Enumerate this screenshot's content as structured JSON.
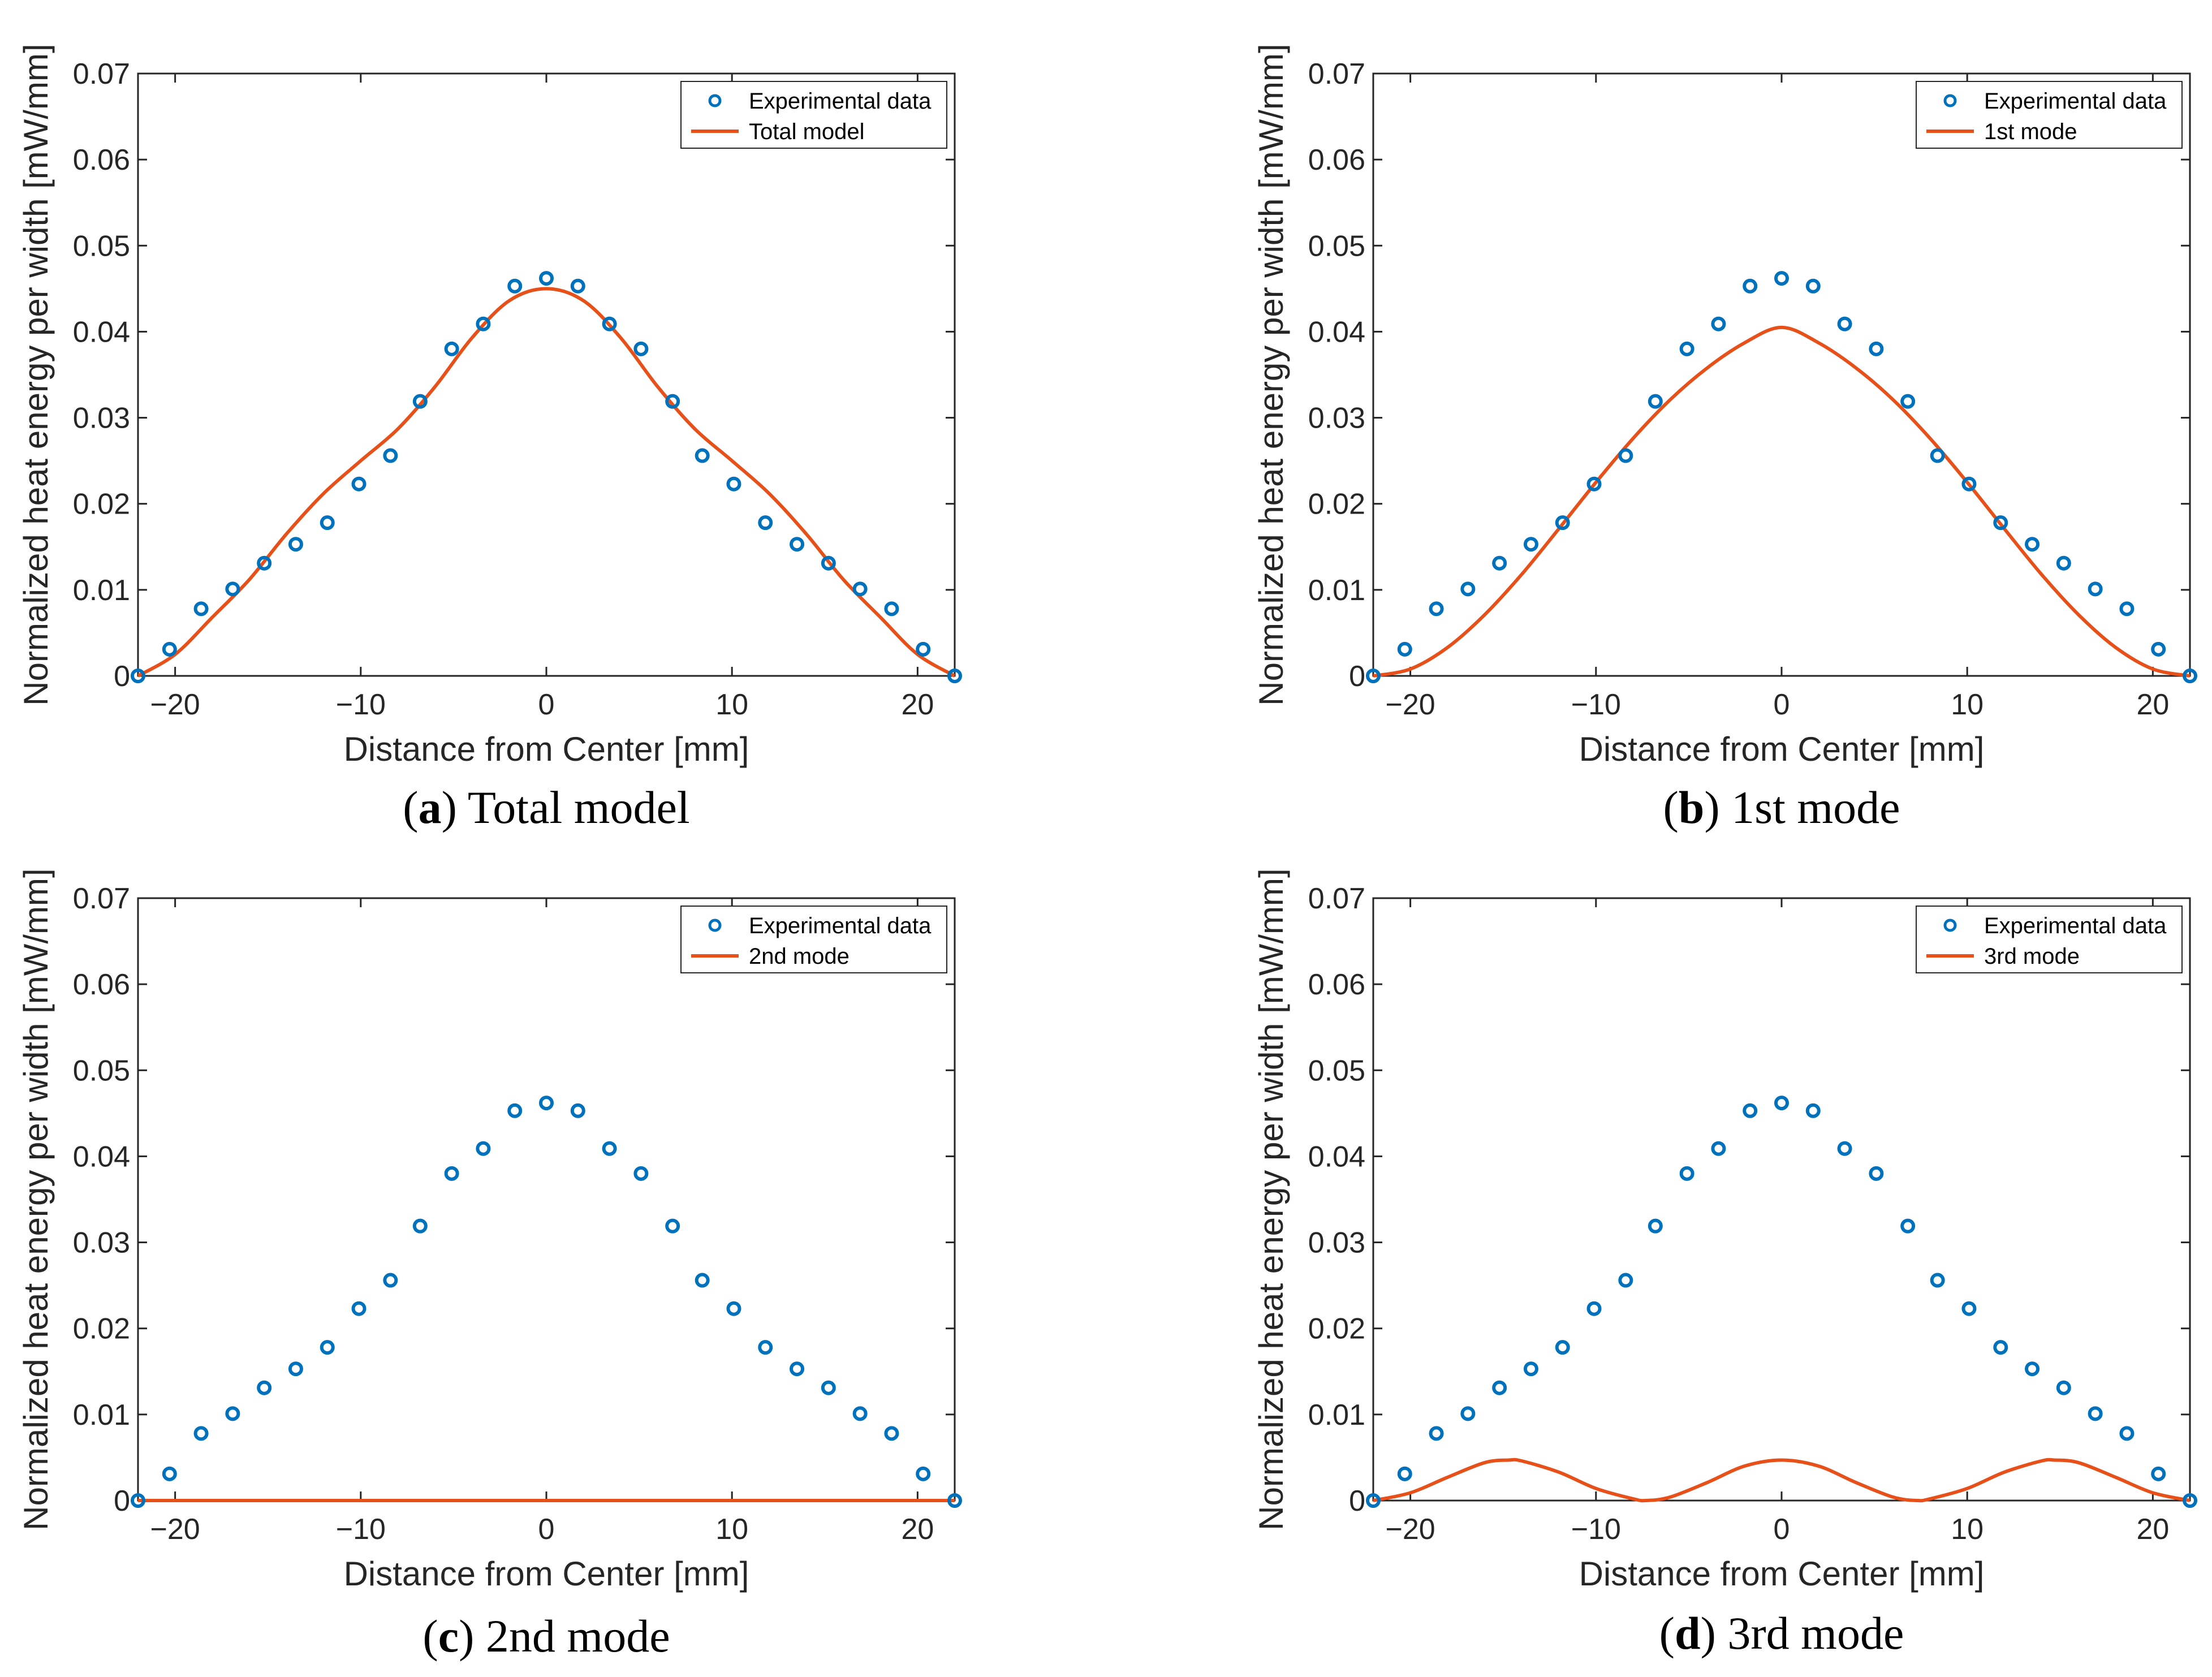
{
  "colors": {
    "experimental": "#0072BD",
    "model": "#E8501A",
    "axis": "#262626"
  },
  "chart_data": [
    {
      "type": "line",
      "panel_letter": "a",
      "caption_text": " Total model",
      "xlabel": "Distance from Center [mm]",
      "ylabel": "Normalized heat energy per width [mW/mm]",
      "xlim": [
        -22,
        22
      ],
      "ylim": [
        0,
        0.07
      ],
      "xticks": [
        -20,
        -10,
        0,
        10,
        20
      ],
      "yticks": [
        0,
        0.01,
        0.02,
        0.03,
        0.04,
        0.05,
        0.06,
        0.07
      ],
      "tick_labels_x": [
        "−20",
        "−10",
        "0",
        "10",
        "20"
      ],
      "tick_labels_y": [
        "0",
        "0.01",
        "0.02",
        "0.03",
        "0.04",
        "0.05",
        "0.06",
        "0.07"
      ],
      "grid": false,
      "legend_position": "top-right",
      "series": [
        {
          "name": "Experimental data",
          "kind": "scatter",
          "x": [
            -22,
            -20.3,
            -18.6,
            -16.9,
            -15.2,
            -13.5,
            -11.8,
            -10.1,
            -8.4,
            -6.8,
            -5.1,
            -3.4,
            -1.7,
            0,
            1.7,
            3.4,
            5.1,
            6.8,
            8.4,
            10.1,
            11.8,
            13.5,
            15.2,
            16.9,
            18.6,
            20.3,
            22
          ],
          "y": [
            0,
            0.0031,
            0.0078,
            0.0101,
            0.0131,
            0.0153,
            0.0178,
            0.0223,
            0.0256,
            0.0319,
            0.038,
            0.0409,
            0.0453,
            0.0462,
            0.0453,
            0.0409,
            0.038,
            0.0319,
            0.0256,
            0.0223,
            0.0178,
            0.0153,
            0.0131,
            0.0101,
            0.0078,
            0.0031,
            0
          ]
        },
        {
          "name": "Total model",
          "kind": "line",
          "x": [
            -22,
            -20,
            -18,
            -16,
            -14,
            -12,
            -10,
            -8,
            -6,
            -4,
            -2,
            0,
            2,
            4,
            6,
            8,
            10,
            12,
            14,
            16,
            18,
            20,
            22
          ],
          "y": [
            0,
            0.0025,
            0.0068,
            0.0112,
            0.0165,
            0.0212,
            0.025,
            0.0287,
            0.0336,
            0.0393,
            0.0436,
            0.045,
            0.0436,
            0.0393,
            0.0336,
            0.0287,
            0.025,
            0.0212,
            0.0165,
            0.0112,
            0.0068,
            0.0025,
            0
          ]
        }
      ]
    },
    {
      "type": "line",
      "panel_letter": "b",
      "caption_text": " 1st mode",
      "xlabel": "Distance from Center [mm]",
      "ylabel": "Normalized heat energy per width [mW/mm]",
      "xlim": [
        -22,
        22
      ],
      "ylim": [
        0,
        0.07
      ],
      "xticks": [
        -20,
        -10,
        0,
        10,
        20
      ],
      "yticks": [
        0,
        0.01,
        0.02,
        0.03,
        0.04,
        0.05,
        0.06,
        0.07
      ],
      "tick_labels_x": [
        "−20",
        "−10",
        "0",
        "10",
        "20"
      ],
      "tick_labels_y": [
        "0",
        "0.01",
        "0.02",
        "0.03",
        "0.04",
        "0.05",
        "0.06",
        "0.07"
      ],
      "grid": false,
      "legend_position": "top-right",
      "series": [
        {
          "name": "Experimental data",
          "kind": "scatter",
          "x": [
            -22,
            -20.3,
            -18.6,
            -16.9,
            -15.2,
            -13.5,
            -11.8,
            -10.1,
            -8.4,
            -6.8,
            -5.1,
            -3.4,
            -1.7,
            0,
            1.7,
            3.4,
            5.1,
            6.8,
            8.4,
            10.1,
            11.8,
            13.5,
            15.2,
            16.9,
            18.6,
            20.3,
            22
          ],
          "y": [
            0,
            0.0031,
            0.0078,
            0.0101,
            0.0131,
            0.0153,
            0.0178,
            0.0223,
            0.0256,
            0.0319,
            0.038,
            0.0409,
            0.0453,
            0.0462,
            0.0453,
            0.0409,
            0.038,
            0.0319,
            0.0256,
            0.0223,
            0.0178,
            0.0153,
            0.0131,
            0.0101,
            0.0078,
            0.0031,
            0
          ]
        },
        {
          "name": "1st mode",
          "kind": "line",
          "x": [
            -22,
            -20,
            -18,
            -16,
            -14,
            -12,
            -10,
            -8,
            -6,
            -4,
            -2,
            0,
            2,
            4,
            6,
            8,
            10,
            12,
            14,
            16,
            18,
            20,
            22
          ],
          "y": [
            0,
            0.0008,
            0.0033,
            0.0071,
            0.0118,
            0.0171,
            0.0225,
            0.0276,
            0.0321,
            0.0358,
            0.0387,
            0.0405,
            0.0387,
            0.0358,
            0.0321,
            0.0276,
            0.0225,
            0.0171,
            0.0118,
            0.0071,
            0.0033,
            0.0008,
            0
          ]
        }
      ]
    },
    {
      "type": "line",
      "panel_letter": "c",
      "caption_text": " 2nd mode",
      "xlabel": "Distance from Center [mm]",
      "ylabel": "Normalized heat energy per width [mW/mm]",
      "xlim": [
        -22,
        22
      ],
      "ylim": [
        0,
        0.07
      ],
      "xticks": [
        -20,
        -10,
        0,
        10,
        20
      ],
      "yticks": [
        0,
        0.01,
        0.02,
        0.03,
        0.04,
        0.05,
        0.06,
        0.07
      ],
      "tick_labels_x": [
        "−20",
        "−10",
        "0",
        "10",
        "20"
      ],
      "tick_labels_y": [
        "0",
        "0.01",
        "0.02",
        "0.03",
        "0.04",
        "0.05",
        "0.06",
        "0.07"
      ],
      "grid": false,
      "legend_position": "top-right",
      "series": [
        {
          "name": "Experimental data",
          "kind": "scatter",
          "x": [
            -22,
            -20.3,
            -18.6,
            -16.9,
            -15.2,
            -13.5,
            -11.8,
            -10.1,
            -8.4,
            -6.8,
            -5.1,
            -3.4,
            -1.7,
            0,
            1.7,
            3.4,
            5.1,
            6.8,
            8.4,
            10.1,
            11.8,
            13.5,
            15.2,
            16.9,
            18.6,
            20.3,
            22
          ],
          "y": [
            0,
            0.0031,
            0.0078,
            0.0101,
            0.0131,
            0.0153,
            0.0178,
            0.0223,
            0.0256,
            0.0319,
            0.038,
            0.0409,
            0.0453,
            0.0462,
            0.0453,
            0.0409,
            0.038,
            0.0319,
            0.0256,
            0.0223,
            0.0178,
            0.0153,
            0.0131,
            0.0101,
            0.0078,
            0.0031,
            0
          ]
        },
        {
          "name": "2nd mode",
          "kind": "line",
          "x": [
            -22,
            22
          ],
          "y": [
            0,
            0
          ]
        }
      ]
    },
    {
      "type": "line",
      "panel_letter": "d",
      "caption_text": " 3rd mode",
      "xlabel": "Distance from Center [mm]",
      "ylabel": "Normalized heat energy per width [mW/mm]",
      "xlim": [
        -22,
        22
      ],
      "ylim": [
        0,
        0.07
      ],
      "xticks": [
        -20,
        -10,
        0,
        10,
        20
      ],
      "yticks": [
        0,
        0.01,
        0.02,
        0.03,
        0.04,
        0.05,
        0.06,
        0.07
      ],
      "tick_labels_x": [
        "−20",
        "−10",
        "0",
        "10",
        "20"
      ],
      "tick_labels_y": [
        "0",
        "0.01",
        "0.02",
        "0.03",
        "0.04",
        "0.05",
        "0.06",
        "0.07"
      ],
      "grid": false,
      "legend_position": "top-right",
      "series": [
        {
          "name": "Experimental data",
          "kind": "scatter",
          "x": [
            -22,
            -20.3,
            -18.6,
            -16.9,
            -15.2,
            -13.5,
            -11.8,
            -10.1,
            -8.4,
            -6.8,
            -5.1,
            -3.4,
            -1.7,
            0,
            1.7,
            3.4,
            5.1,
            6.8,
            8.4,
            10.1,
            11.8,
            13.5,
            15.2,
            16.9,
            18.6,
            20.3,
            22
          ],
          "y": [
            0,
            0.0031,
            0.0078,
            0.0101,
            0.0131,
            0.0153,
            0.0178,
            0.0223,
            0.0256,
            0.0319,
            0.038,
            0.0409,
            0.0453,
            0.0462,
            0.0453,
            0.0409,
            0.038,
            0.0319,
            0.0256,
            0.0223,
            0.0178,
            0.0153,
            0.0131,
            0.0101,
            0.0078,
            0.0031,
            0
          ]
        },
        {
          "name": "3rd mode",
          "kind": "line",
          "x": [
            -22,
            -20,
            -18,
            -16,
            -14.7,
            -14,
            -12,
            -10,
            -8,
            -7.3,
            -6,
            -4,
            -2,
            0,
            2,
            4,
            6,
            7.3,
            8,
            10,
            12,
            14,
            14.7,
            16,
            18,
            20,
            22
          ],
          "y": [
            0,
            0.0009,
            0.0027,
            0.0044,
            0.0047,
            0.0046,
            0.0033,
            0.0014,
            0.0002,
            0,
            0.0004,
            0.0021,
            0.004,
            0.0047,
            0.004,
            0.0021,
            0.0004,
            0,
            0.0002,
            0.0014,
            0.0033,
            0.0046,
            0.0047,
            0.0044,
            0.0027,
            0.0009,
            0
          ]
        }
      ]
    }
  ]
}
